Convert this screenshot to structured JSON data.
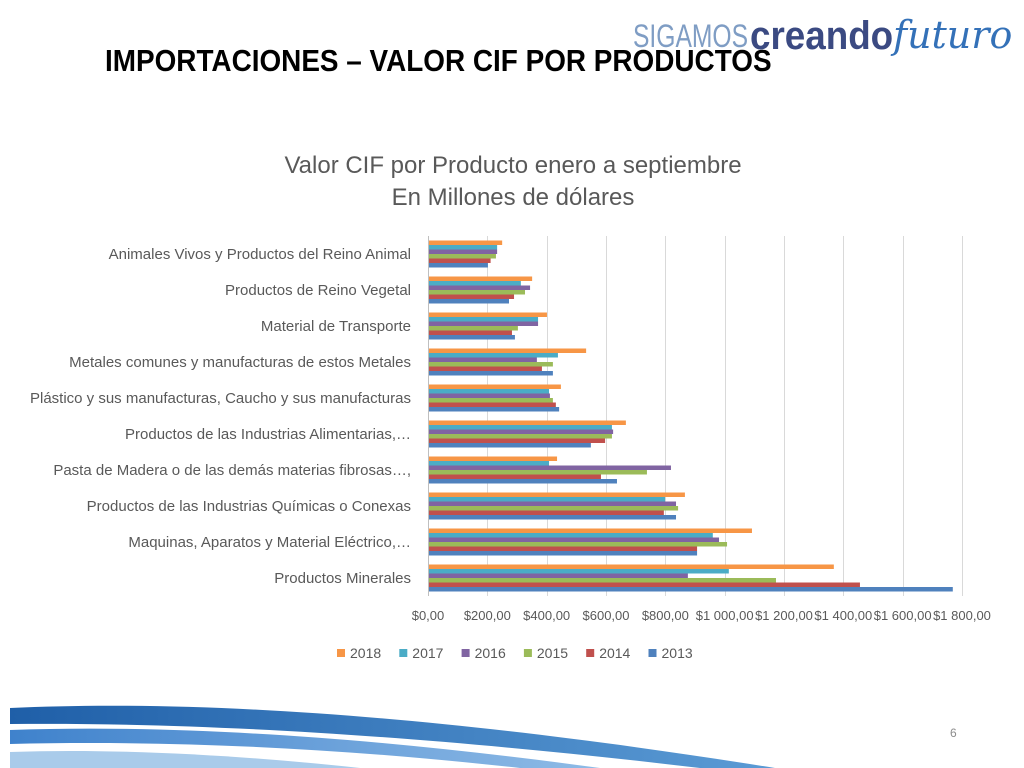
{
  "logo": {
    "sigamos": "SIGAMOS",
    "creando": "creando",
    "futuro": "futuro"
  },
  "slide": {
    "title": "IMPORTACIONES – VALOR CIF POR PRODUCTOS",
    "page_number": "6"
  },
  "chart_data": {
    "type": "bar",
    "orientation": "horizontal",
    "title": "Valor CIF por Producto enero a septiembre",
    "subtitle": "En Millones de dólares",
    "categories": [
      "Animales Vivos y Productos del Reino Animal",
      "Productos de Reino Vegetal",
      "Material de Transporte",
      "Metales comunes y manufacturas de estos Metales",
      "Plástico y sus manufacturas, Caucho y sus manufacturas",
      "Productos de las Industrias Alimentarias,…",
      "Pasta de Madera o de las demás materias fibrosas…,",
      "Productos de las Industrias Químicas o Conexas",
      "Maquinas, Aparatos y Material Eléctrico,…",
      "Productos Minerales"
    ],
    "series": [
      {
        "name": "2018",
        "color": "#f79646",
        "values": [
          250,
          351,
          401,
          533,
          448,
          667,
          435,
          866,
          1092,
          1368
        ]
      },
      {
        "name": "2017",
        "color": "#4bacc6",
        "values": [
          233,
          313,
          371,
          438,
          408,
          620,
          408,
          799,
          960,
          1014
        ]
      },
      {
        "name": "2016",
        "color": "#8064a2",
        "values": [
          233,
          344,
          371,
          367,
          411,
          624,
          819,
          836,
          981,
          876
        ]
      },
      {
        "name": "2015",
        "color": "#9bbb59",
        "values": [
          229,
          327,
          303,
          421,
          421,
          620,
          738,
          843,
          1008,
          1173
        ]
      },
      {
        "name": "2014",
        "color": "#c0504d",
        "values": [
          211,
          290,
          283,
          384,
          431,
          597,
          583,
          795,
          907,
          1456
        ]
      },
      {
        "name": "2013",
        "color": "#4f81bd",
        "values": [
          202,
          273,
          293,
          421,
          442,
          549,
          637,
          836,
          907,
          1769
        ]
      }
    ],
    "xlim": [
      0,
      1800
    ],
    "x_ticks": [
      {
        "value": 0,
        "label": "$0,00"
      },
      {
        "value": 200,
        "label": "$200,00"
      },
      {
        "value": 400,
        "label": "$400,00"
      },
      {
        "value": 600,
        "label": "$600,00"
      },
      {
        "value": 800,
        "label": "$800,00"
      },
      {
        "value": 1000,
        "label": "$1 000,00"
      },
      {
        "value": 1200,
        "label": "$1 200,00"
      },
      {
        "value": 1400,
        "label": "$1 400,00"
      },
      {
        "value": 1600,
        "label": "$1 600,00"
      },
      {
        "value": 1800,
        "label": "$1 800,00"
      }
    ],
    "grid": true,
    "legend": "bottom"
  }
}
